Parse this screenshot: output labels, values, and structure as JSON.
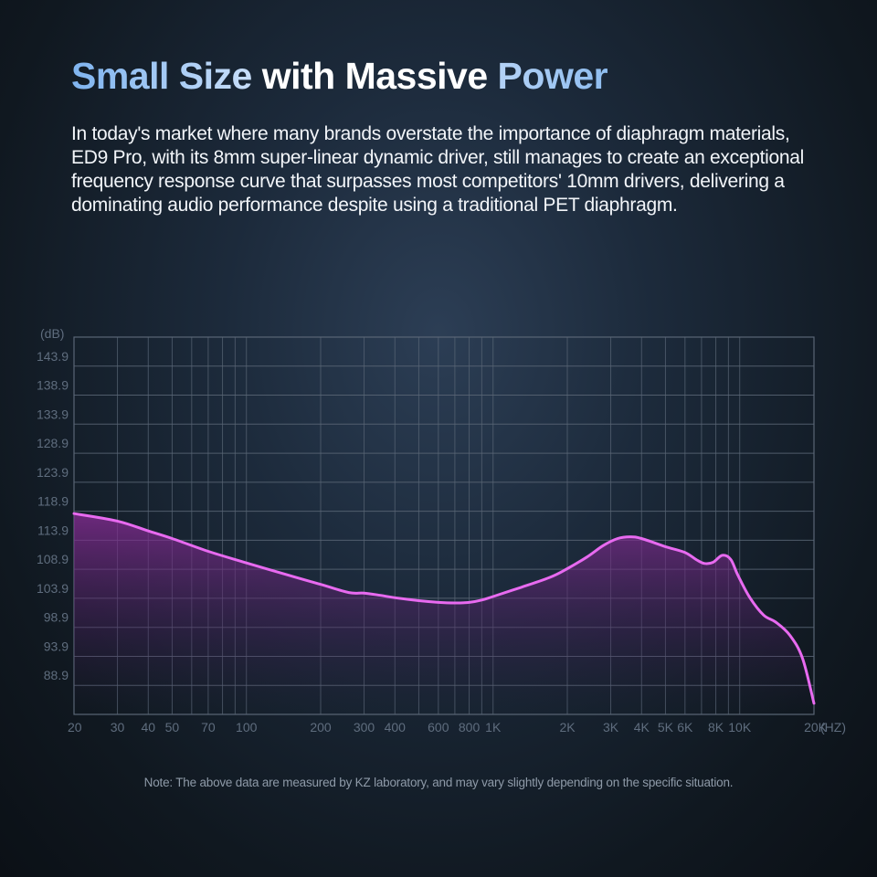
{
  "headline": {
    "part1": "Small Size",
    "part2": " with Massive ",
    "part3": "Power"
  },
  "intro": "In today's market where many brands overstate the importance of diaphragm materials, ED9 Pro, with its 8mm super-linear dynamic driver, still manages to create an exceptional frequency response curve that surpasses most competitors' 10mm drivers, delivering a dominating audio performance despite using a traditional PET diaphragm.",
  "note": "Note: The above data are measured by KZ laboratory, and may vary slightly depending on the specific situation.",
  "colors": {
    "curve": "#e86af0",
    "fill_top": "#8a2c98",
    "grid": "#5a6676",
    "tick_text": "#5f6d7e"
  },
  "chart_data": {
    "type": "area",
    "xlabel": "(HZ)",
    "ylabel": "(dB)",
    "x_scale": "log",
    "grid": true,
    "ylim": [
      83.9,
      148.9
    ],
    "xlim": [
      20,
      20000
    ],
    "y_ticks": [
      143.9,
      138.9,
      133.9,
      128.9,
      123.9,
      118.9,
      113.9,
      108.9,
      103.9,
      98.9,
      93.9,
      88.9
    ],
    "y_tick_labels": [
      "143.9",
      "138.9",
      "133.9",
      "128.9",
      "123.9",
      "118.9",
      "113.9",
      "108.9",
      "103.9",
      "98.9",
      "93.9",
      "88.9"
    ],
    "x_ticks": [
      20,
      30,
      40,
      50,
      70,
      100,
      200,
      300,
      400,
      600,
      800,
      1000,
      2000,
      3000,
      4000,
      5000,
      6000,
      8000,
      10000,
      20000
    ],
    "x_tick_labels": [
      "20",
      "30",
      "40",
      "50",
      "70",
      "100",
      "200",
      "300",
      "400",
      "600",
      "800",
      "1K",
      "2K",
      "3K",
      "4K",
      "5K",
      "6K",
      "8K",
      "10K",
      "20K"
    ],
    "x_grid": [
      20,
      30,
      40,
      50,
      60,
      70,
      80,
      90,
      100,
      200,
      300,
      400,
      500,
      600,
      700,
      800,
      900,
      1000,
      2000,
      3000,
      4000,
      5000,
      6000,
      7000,
      8000,
      9000,
      10000,
      20000
    ],
    "series": [
      {
        "x": [
          20,
          30,
          40,
          50,
          70,
          100,
          150,
          200,
          260,
          300,
          350,
          400,
          500,
          600,
          700,
          800,
          900,
          1000,
          1300,
          1700,
          2000,
          2400,
          2800,
          3200,
          3600,
          4000,
          5000,
          6000,
          6700,
          7200,
          7800,
          8500,
          9200,
          9800,
          11000,
          12500,
          14000,
          16000,
          18000,
          20000
        ],
        "y": [
          118.5,
          117.2,
          115.5,
          114.2,
          112.0,
          110.0,
          107.8,
          106.3,
          104.9,
          104.8,
          104.4,
          104.0,
          103.5,
          103.2,
          103.1,
          103.2,
          103.6,
          104.2,
          105.8,
          107.5,
          109.0,
          111.0,
          113.0,
          114.2,
          114.5,
          114.2,
          112.8,
          111.8,
          110.5,
          109.9,
          110.1,
          111.3,
          110.6,
          108.0,
          104.0,
          101.0,
          99.8,
          97.5,
          93.5,
          85.8
        ]
      }
    ]
  }
}
